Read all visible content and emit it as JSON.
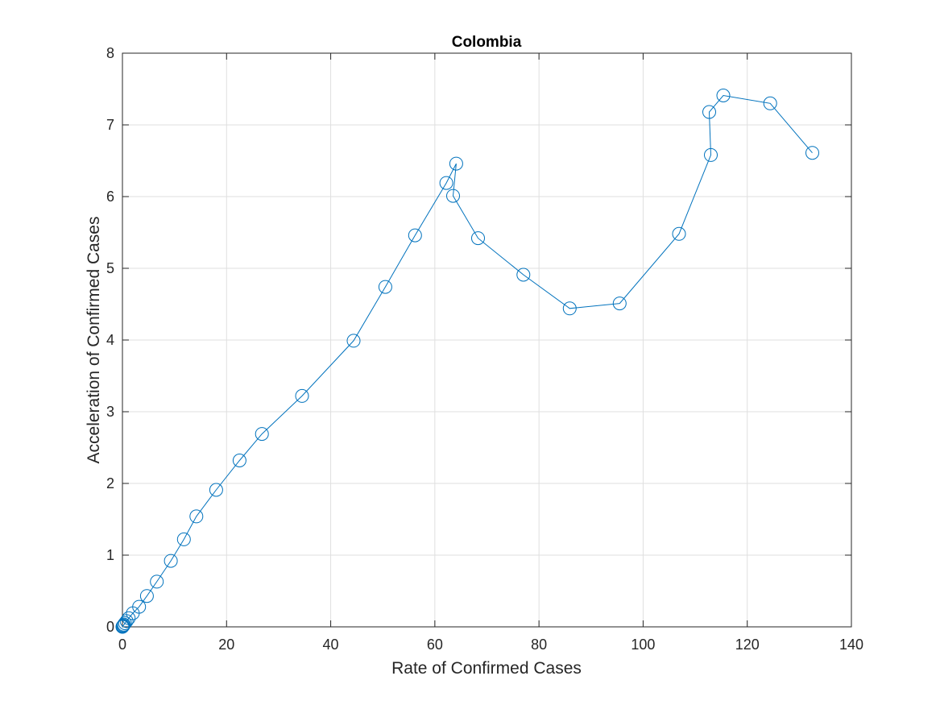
{
  "chart_data": {
    "type": "line",
    "title": "Colombia",
    "xlabel": "Rate of Confirmed Cases",
    "ylabel": "Acceleration of Confirmed Cases",
    "xlim": [
      0,
      140
    ],
    "ylim": [
      0,
      8
    ],
    "xticks": [
      "0",
      "20",
      "40",
      "60",
      "80",
      "100",
      "120",
      "140"
    ],
    "yticks": [
      "0",
      "1",
      "2",
      "3",
      "4",
      "5",
      "6",
      "7",
      "8"
    ],
    "grid": true,
    "marker": "circle",
    "line_color": "#0072BD",
    "series": [
      {
        "x": [
          0.0,
          0.05,
          0.1,
          0.2,
          0.3,
          0.5,
          0.8,
          1.2,
          2.0,
          3.2,
          4.7,
          6.6,
          9.3,
          11.8,
          14.2,
          18.0,
          22.5,
          26.8,
          34.5,
          44.4,
          50.5,
          56.2,
          62.2,
          64.1,
          63.5,
          68.3,
          77.0,
          85.9,
          95.5,
          106.9,
          113.0,
          112.7,
          115.4,
          124.4,
          132.5
        ],
        "y": [
          0.0,
          0.005,
          0.01,
          0.02,
          0.03,
          0.05,
          0.08,
          0.12,
          0.19,
          0.28,
          0.43,
          0.63,
          0.92,
          1.22,
          1.54,
          1.91,
          2.32,
          2.69,
          3.22,
          3.99,
          4.74,
          5.46,
          6.19,
          6.46,
          6.01,
          5.42,
          4.91,
          4.44,
          4.51,
          5.48,
          6.58,
          7.18,
          7.41,
          7.3,
          6.61
        ]
      }
    ]
  }
}
